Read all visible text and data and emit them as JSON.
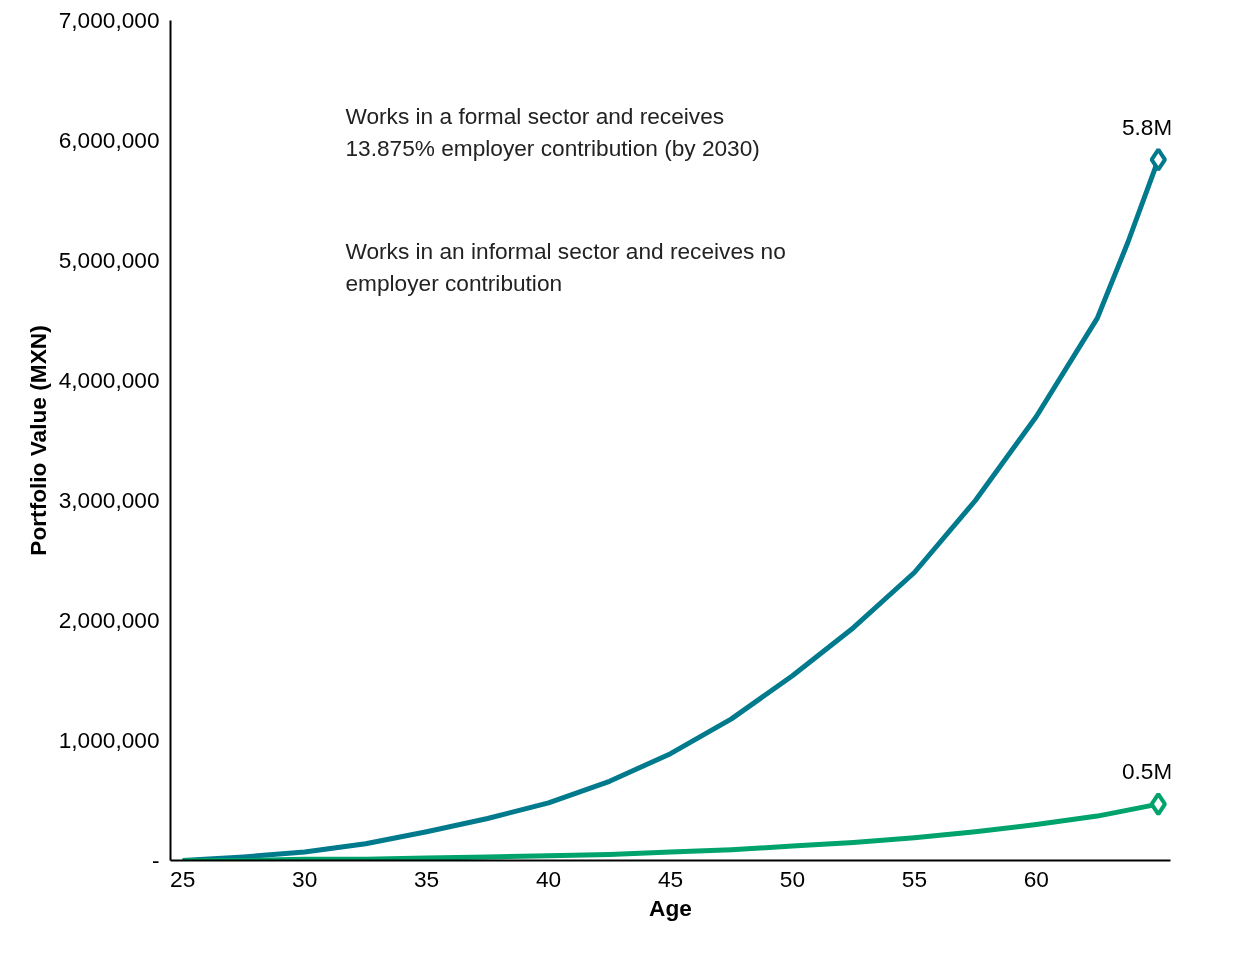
{
  "chart_data": {
    "type": "line",
    "xlabel": "Age",
    "ylabel": "Portfolio Value (MXN)",
    "x": [
      25,
      27.5,
      30,
      32.5,
      35,
      37.5,
      40,
      42.5,
      45,
      47.5,
      50,
      52.5,
      55,
      57.5,
      60,
      62.5,
      63.75,
      65
    ],
    "series": [
      {
        "color": "#007a8c",
        "values": [
          0,
          30000,
          70000,
          140000,
          240000,
          350000,
          480000,
          660000,
          890000,
          1180000,
          1540000,
          1940000,
          2400000,
          3000000,
          3700000,
          4520000,
          5150000,
          5840000
        ]
      },
      {
        "color": "#00a36c",
        "values": [
          0,
          0,
          10000,
          10000,
          20000,
          30000,
          40000,
          50000,
          70000,
          90000,
          120000,
          150000,
          190000,
          240000,
          300000,
          370000,
          420000,
          470000
        ]
      },
      {
        "type": "scatter",
        "color": "#007a8c",
        "x": [
          65
        ],
        "values": [
          5840000
        ],
        "value_labels": [
          "5.8M"
        ],
        "marker": "diamond"
      },
      {
        "type": "scatter",
        "color": "#00a36c",
        "x": [
          65
        ],
        "values": [
          470000
        ],
        "value_labels": [
          "0.5M"
        ],
        "marker": "diamond"
      }
    ],
    "annotations": [
      "Works in a formal sector and receives\n13.875% employer contribution (by 2030)",
      "Works in an informal sector and receives no\nemployer contribution"
    ],
    "xlim": [
      24.5,
      65.5
    ],
    "ylim": [
      0,
      7000000
    ],
    "xticks": [
      25,
      30,
      35,
      40,
      45,
      50,
      55,
      60
    ],
    "yticks": [
      {
        "value": 0,
        "label": "-"
      },
      {
        "value": 1000000,
        "label": "1,000,000"
      },
      {
        "value": 2000000,
        "label": "2,000,000"
      },
      {
        "value": 3000000,
        "label": "3,000,000"
      },
      {
        "value": 4000000,
        "label": "4,000,000"
      },
      {
        "value": 5000000,
        "label": "5,000,000"
      },
      {
        "value": 6000000,
        "label": "6,000,000"
      },
      {
        "value": 7000000,
        "label": "7,000,000"
      }
    ],
    "grid": false
  }
}
